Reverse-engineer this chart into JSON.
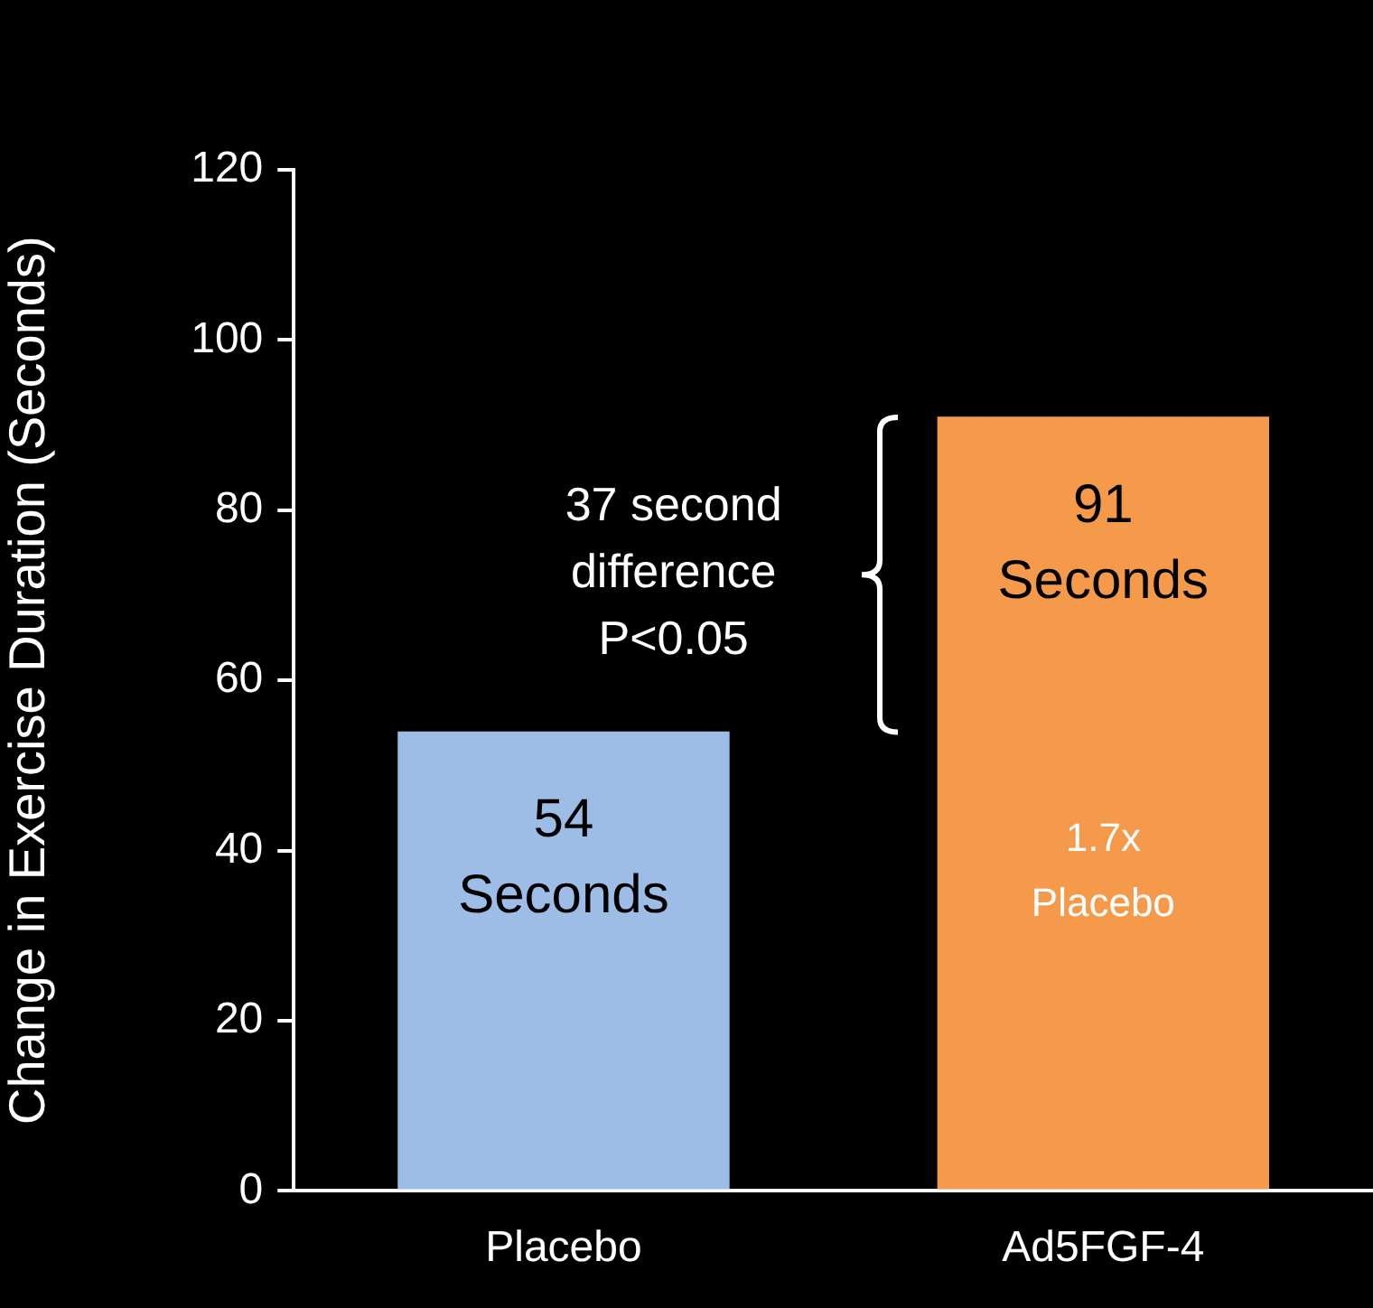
{
  "chart_data": {
    "type": "bar",
    "ylabel": "Change in Exercise Duration (Seconds)",
    "categories": [
      "Placebo",
      "Ad5FGF-4"
    ],
    "values": [
      54,
      91
    ],
    "colors": [
      "#9dbde6",
      "#f59a4a"
    ],
    "value_labels": [
      "54 Seconds",
      "91 Seconds"
    ],
    "ylim": [
      0,
      120
    ],
    "yticks": [
      0,
      20,
      40,
      60,
      80,
      100,
      120
    ],
    "grid": false,
    "annotations": [
      "37 second difference P<0.05",
      "1.7x Placebo"
    ]
  }
}
